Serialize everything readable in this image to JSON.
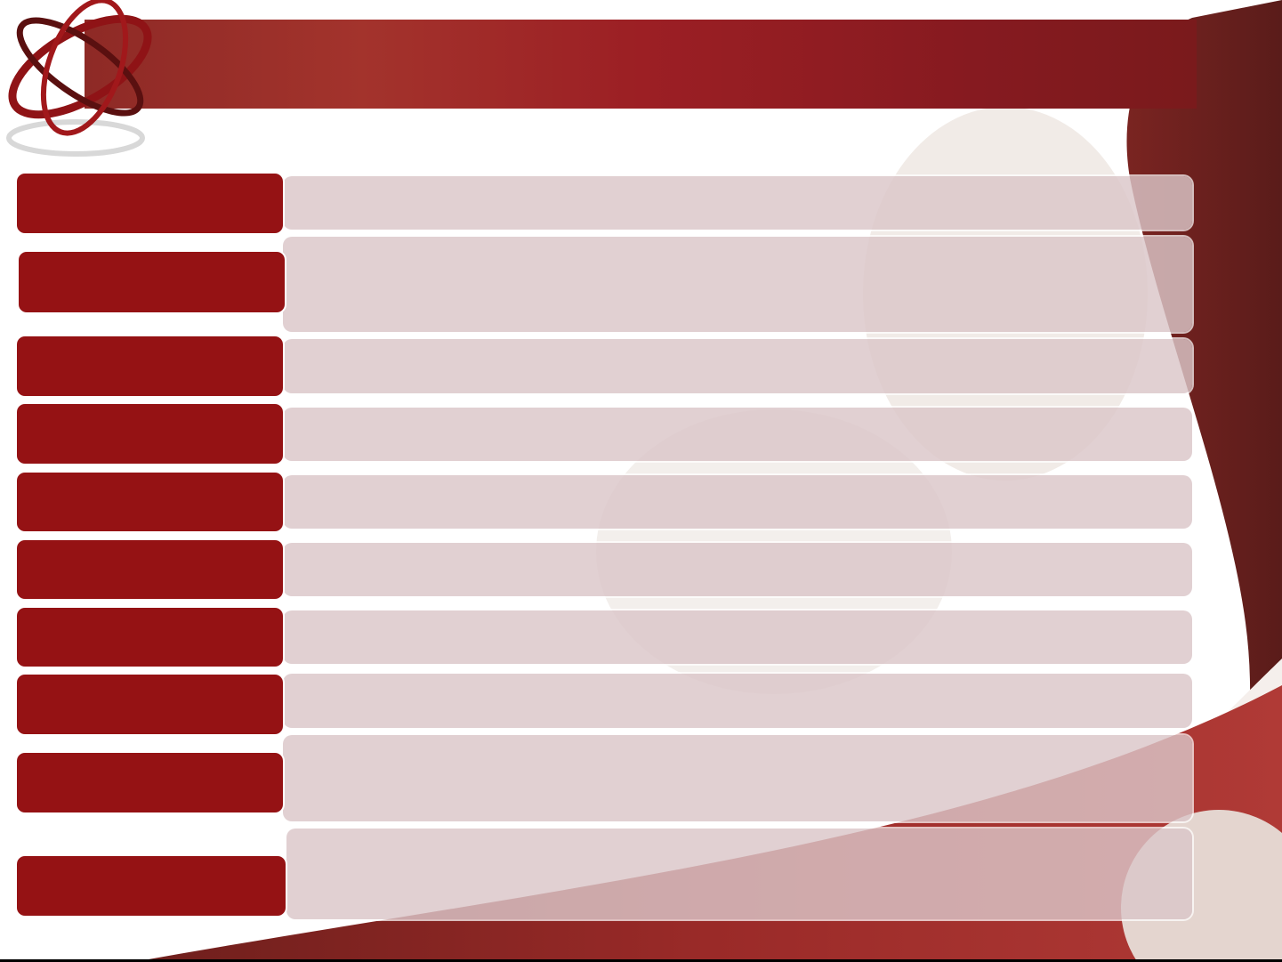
{
  "colors": {
    "label_fill": "#951214",
    "banner": "#9c1f24",
    "content_fill": "#dcc6c8",
    "background": "#ffffff"
  },
  "rows": [
    {
      "label": "",
      "content": ""
    },
    {
      "label": "",
      "content": ""
    },
    {
      "label": "",
      "content": ""
    },
    {
      "label": "",
      "content": ""
    },
    {
      "label": "",
      "content": ""
    },
    {
      "label": "",
      "content": ""
    },
    {
      "label": "",
      "content": ""
    },
    {
      "label": "",
      "content": ""
    },
    {
      "label": "",
      "content": ""
    },
    {
      "label": "",
      "content": ""
    }
  ]
}
